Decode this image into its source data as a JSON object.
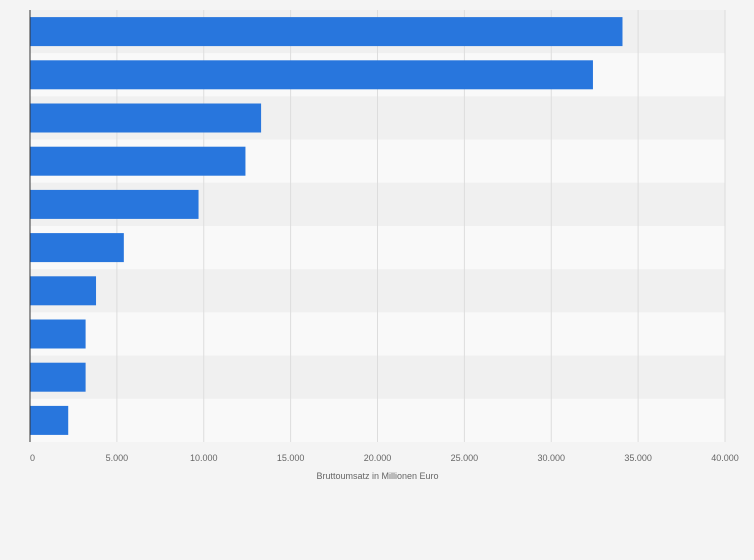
{
  "colors": {
    "background": "#f4f4f4",
    "band_dark": "#f0f0f0",
    "band_light": "#f9f9f9",
    "bar": "#2876dd",
    "grid": "#dddddd",
    "axis": "#333333"
  },
  "chart_data": {
    "type": "bar",
    "orientation": "horizontal",
    "title": "",
    "xlabel": "Bruttoumsatz in Millionen Euro",
    "ylabel": "",
    "xlim": [
      0,
      40000
    ],
    "grid": true,
    "legend": "none",
    "x_ticks": [
      0,
      5000,
      10000,
      15000,
      20000,
      25000,
      30000,
      35000,
      40000
    ],
    "x_tick_labels": [
      "0",
      "5.000",
      "10.000",
      "15.000",
      "20.000",
      "25.000",
      "30.000",
      "35.000",
      "40.000"
    ],
    "categories": [
      "",
      "",
      "",
      "",
      "",
      "",
      "",
      "",
      "",
      ""
    ],
    "values": [
      34100,
      32400,
      13300,
      12400,
      9700,
      5400,
      3800,
      3200,
      3200,
      2200
    ]
  }
}
